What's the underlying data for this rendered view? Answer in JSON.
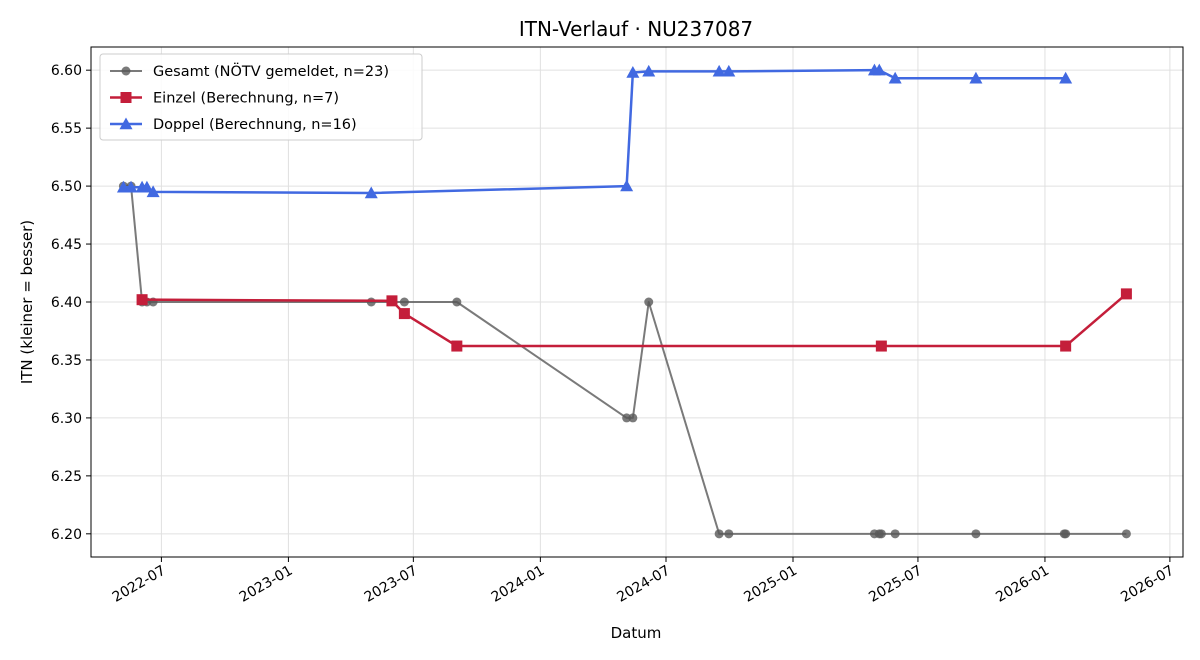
{
  "chart_data": {
    "type": "line",
    "title": "ITN-Verlauf · NU237087",
    "xlabel": "Datum",
    "ylabel": "ITN  (kleiner = besser)",
    "x_type": "date",
    "xlim": [
      "2022-03-21",
      "2026-07-20"
    ],
    "ylim": [
      6.18,
      6.62
    ],
    "x_ticks": [
      "2022-07-01",
      "2023-01-01",
      "2023-07-01",
      "2024-01-01",
      "2024-07-01",
      "2025-01-01",
      "2025-07-01",
      "2026-01-01",
      "2026-07-01"
    ],
    "x_tick_labels": [
      "2022-07",
      "2023-01",
      "2023-07",
      "2024-01",
      "2024-07",
      "2025-01",
      "2025-07",
      "2026-01",
      "2026-07"
    ],
    "y_ticks": [
      6.2,
      6.25,
      6.3,
      6.35,
      6.4,
      6.45,
      6.5,
      6.55,
      6.6
    ],
    "y_tick_labels": [
      "6.20",
      "6.25",
      "6.30",
      "6.35",
      "6.40",
      "6.45",
      "6.50",
      "6.55",
      "6.60"
    ],
    "grid": true,
    "legend_position": "top-left",
    "series": [
      {
        "name": "Gesamt (NÖTV gemeldet, n=23)",
        "color": "#595959",
        "marker": "circle",
        "points": [
          [
            "2022-05-07",
            6.5
          ],
          [
            "2022-05-18",
            6.5
          ],
          [
            "2022-06-03",
            6.4
          ],
          [
            "2022-06-10",
            6.4
          ],
          [
            "2022-06-19",
            6.4
          ],
          [
            "2023-05-01",
            6.4
          ],
          [
            "2023-06-18",
            6.4
          ],
          [
            "2023-09-02",
            6.4
          ],
          [
            "2024-05-05",
            6.3
          ],
          [
            "2024-05-14",
            6.3
          ],
          [
            "2024-06-06",
            6.4
          ],
          [
            "2024-09-16",
            6.2
          ],
          [
            "2024-09-30",
            6.2
          ],
          [
            "2025-04-29",
            6.2
          ],
          [
            "2025-05-06",
            6.2
          ],
          [
            "2025-05-09",
            6.2
          ],
          [
            "2025-05-29",
            6.2
          ],
          [
            "2025-09-23",
            6.2
          ],
          [
            "2026-01-29",
            6.2
          ],
          [
            "2026-01-31",
            6.2
          ],
          [
            "2026-04-29",
            6.2
          ]
        ]
      },
      {
        "name": "Einzel (Berechnung, n=7)",
        "color": "#c41e3a",
        "marker": "square",
        "points": [
          [
            "2022-06-03",
            6.402
          ],
          [
            "2023-05-31",
            6.401
          ],
          [
            "2023-06-18",
            6.39
          ],
          [
            "2023-09-02",
            6.362
          ],
          [
            "2025-05-09",
            6.362
          ],
          [
            "2026-01-31",
            6.362
          ],
          [
            "2026-04-29",
            6.407
          ]
        ]
      },
      {
        "name": "Doppel (Berechnung, n=16)",
        "color": "#4169e1",
        "marker": "triangle",
        "points": [
          [
            "2022-05-07",
            6.499
          ],
          [
            "2022-05-18",
            6.499
          ],
          [
            "2022-06-03",
            6.499
          ],
          [
            "2022-06-10",
            6.499
          ],
          [
            "2022-06-19",
            6.495
          ],
          [
            "2023-05-01",
            6.494
          ],
          [
            "2024-05-05",
            6.5
          ],
          [
            "2024-05-14",
            6.598
          ],
          [
            "2024-06-06",
            6.599
          ],
          [
            "2024-09-16",
            6.599
          ],
          [
            "2024-09-30",
            6.599
          ],
          [
            "2025-04-29",
            6.6
          ],
          [
            "2025-05-06",
            6.6
          ],
          [
            "2025-05-29",
            6.593
          ],
          [
            "2025-09-23",
            6.593
          ],
          [
            "2026-01-31",
            6.593
          ]
        ]
      }
    ]
  }
}
